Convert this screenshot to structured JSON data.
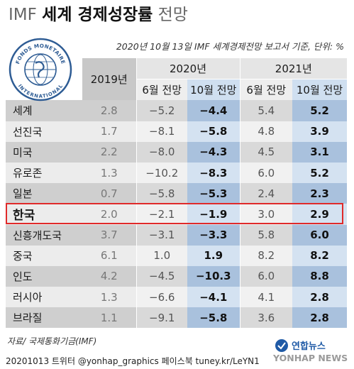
{
  "title": {
    "part1": "IMF",
    "part2": "세계 경제성장률",
    "part3": "전망"
  },
  "subtitle": "2020년 10월 13일 IMF 세계경제전망 보고서 기준, 단위: %",
  "seal": {
    "top_text": "FONDS MONETAIRE",
    "bottom_text": "INTERNATIONAL"
  },
  "header": {
    "y2019": "2019년",
    "y2020": "2020년",
    "y2021": "2021년",
    "june": "6월 전망",
    "oct": "10월 전망"
  },
  "rows": [
    {
      "label": "세계",
      "v2019": "2.8",
      "jun2020": "−5.2",
      "oct2020": "−4.4",
      "jun2021": "5.4",
      "oct2021": "5.2"
    },
    {
      "label": "선진국",
      "v2019": "1.7",
      "jun2020": "−8.1",
      "oct2020": "−5.8",
      "jun2021": "4.8",
      "oct2021": "3.9"
    },
    {
      "label": "미국",
      "v2019": "2.2",
      "jun2020": "−8.0",
      "oct2020": "−4.3",
      "jun2021": "4.5",
      "oct2021": "3.1"
    },
    {
      "label": "유로존",
      "v2019": "1.3",
      "jun2020": "−10.2",
      "oct2020": "−8.3",
      "jun2021": "6.0",
      "oct2021": "5.2"
    },
    {
      "label": "일본",
      "v2019": "0.7",
      "jun2020": "−5.8",
      "oct2020": "−5.3",
      "jun2021": "2.4",
      "oct2021": "2.3"
    },
    {
      "label": "한국",
      "v2019": "2.0",
      "jun2020": "−2.1",
      "oct2020": "−1.9",
      "jun2021": "3.0",
      "oct2021": "2.9"
    },
    {
      "label": "신흥개도국",
      "v2019": "3.7",
      "jun2020": "−3.1",
      "oct2020": "−3.3",
      "jun2021": "5.8",
      "oct2021": "6.0"
    },
    {
      "label": "중국",
      "v2019": "6.1",
      "jun2020": "1.0",
      "oct2020": "1.9",
      "jun2021": "8.2",
      "oct2021": "8.2"
    },
    {
      "label": "인도",
      "v2019": "4.2",
      "jun2020": "−4.5",
      "oct2020": "−10.3",
      "jun2021": "6.0",
      "oct2021": "8.8"
    },
    {
      "label": "러시아",
      "v2019": "1.3",
      "jun2020": "−6.6",
      "oct2020": "−4.1",
      "jun2021": "4.1",
      "oct2021": "2.8"
    },
    {
      "label": "브라질",
      "v2019": "1.1",
      "jun2020": "−9.1",
      "oct2020": "−5.8",
      "jun2021": "3.6",
      "oct2021": "2.8"
    }
  ],
  "source": "자료/ 국제통화기금(IMF)",
  "footer": "20201013  트위터 @yonhap_graphics  페이스북 tuney.kr/LeYN1",
  "logo": {
    "ko": "연합뉴스",
    "en": "YONHAP NEWS"
  },
  "colors": {
    "highlight": "#e02a2a",
    "blue_dark": "#a9c1dd",
    "blue_light": "#d4e2f1"
  }
}
